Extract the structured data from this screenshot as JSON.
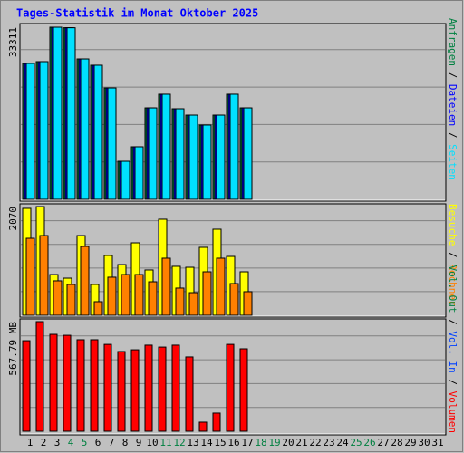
{
  "chart_data": {
    "type": "bar",
    "title": "Tages-Statistik im Monat Oktober 2025",
    "separator": " / ",
    "categories": [
      "1",
      "2",
      "3",
      "4",
      "5",
      "6",
      "7",
      "8",
      "9",
      "10",
      "11",
      "12",
      "13",
      "14",
      "15",
      "16",
      "17",
      "18",
      "19",
      "20",
      "21",
      "22",
      "23",
      "24",
      "25",
      "26",
      "27",
      "28",
      "29",
      "30",
      "31"
    ],
    "category_colors": [
      "#000000",
      "#000000",
      "#000000",
      "#008040",
      "#008040",
      "#000000",
      "#000000",
      "#000000",
      "#000000",
      "#000000",
      "#008040",
      "#008040",
      "#000000",
      "#000000",
      "#000000",
      "#000000",
      "#000000",
      "#008040",
      "#008040",
      "#000000",
      "#000000",
      "#000000",
      "#000000",
      "#000000",
      "#008040",
      "#008040",
      "#000000",
      "#000000",
      "#000000",
      "#000000",
      "#000000"
    ],
    "grid": true,
    "panels": [
      {
        "ylim": [
          0,
          33311
        ],
        "yticks": [
          33311
        ],
        "series": [
          {
            "name": "Anfragen",
            "color": "#008040",
            "values": [
              26300,
              26650,
              33311,
              33200,
              27170,
              25950,
              21560,
              7360,
              10170,
              17700,
              20340,
              17530,
              16300,
              14380,
              16300,
              20340,
              17700,
              null,
              null,
              null,
              null,
              null,
              null,
              null,
              null,
              null,
              null,
              null,
              null,
              null,
              null
            ]
          },
          {
            "name": "Dateien",
            "color": "#0000ff",
            "values": [
              26300,
              26650,
              33311,
              33200,
              27170,
              25950,
              21560,
              7360,
              10170,
              17700,
              20340,
              17530,
              16300,
              14380,
              16300,
              20340,
              17700,
              null,
              null,
              null,
              null,
              null,
              null,
              null,
              null,
              null,
              null,
              null,
              null,
              null,
              null
            ]
          },
          {
            "name": "Seiten",
            "color": "#00e0ff",
            "values": [
              26300,
              26650,
              33311,
              33200,
              27170,
              25950,
              21560,
              7360,
              10170,
              17700,
              20340,
              17530,
              16300,
              14380,
              16300,
              20340,
              17700,
              null,
              null,
              null,
              null,
              null,
              null,
              null,
              null,
              null,
              null,
              null,
              null,
              null,
              null
            ]
          }
        ]
      },
      {
        "ylim": [
          0,
          2070
        ],
        "yticks": [
          2070
        ],
        "series": [
          {
            "name": "Besuche",
            "color": "#ffff00",
            "values": [
              2036,
              2070,
              776,
              707,
              1518,
              587,
              1139,
              966,
              1380,
              863,
              1829,
              932,
              914,
              1294,
              1639,
              1121,
              828,
              null,
              null,
              null,
              null,
              null,
              null,
              null,
              null,
              null,
              null,
              null,
              null,
              null,
              null
            ]
          },
          {
            "name": "Rechner",
            "color": "#ff8000",
            "values": [
              1466,
              1518,
              656,
              587,
              1311,
              259,
              725,
              776,
              776,
              638,
              1087,
              518,
              431,
              828,
              1087,
              604,
              449,
              null,
              null,
              null,
              null,
              null,
              null,
              null,
              null,
              null,
              null,
              null,
              null,
              null,
              null
            ]
          }
        ]
      },
      {
        "ylim": [
          0,
          567.79
        ],
        "yticks": [
          {
            "value": 567.79,
            "label": "567.79 MB"
          }
        ],
        "legend_extra": [
          {
            "name": "Vol. Out",
            "color": "#008040"
          },
          {
            "name": "Vol. In",
            "color": "#0040ff"
          }
        ],
        "series": [
          {
            "name": "Volumen",
            "color": "#ff0000",
            "values": [
              469,
              567.79,
              502,
              497,
              474,
              474,
              450,
              413,
              422,
              446,
              436,
              446,
              385,
              47,
              94,
              450,
              427,
              null,
              null,
              null,
              null,
              null,
              null,
              null,
              null,
              null,
              null,
              null,
              null,
              null,
              null
            ]
          }
        ]
      }
    ]
  }
}
